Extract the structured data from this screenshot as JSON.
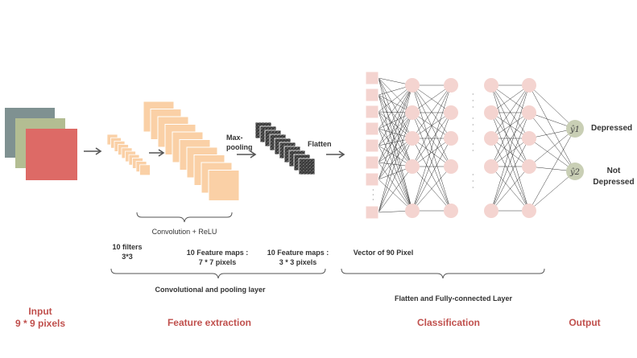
{
  "sections": {
    "input": [
      "Input",
      "9 * 9 pixels"
    ],
    "feature_extraction": "Feature extraction",
    "classification": "Classification",
    "output": "Output"
  },
  "labels": {
    "max_pooling": [
      "Max-",
      "pooling"
    ],
    "flatten": "Flatten",
    "convolution_relu": "Convolution + ReLU",
    "filters": [
      "10 filters",
      "3*3"
    ],
    "feature_maps_7": [
      "10 Feature maps :",
      "7 * 7 pixels"
    ],
    "feature_maps_3": [
      "10 Feature maps :",
      "3 * 3 pixels"
    ],
    "vector": "Vector of 90 Pixel",
    "conv_pool_layer": "Convolutional and pooling layer",
    "flatten_fc_layer": "Flatten and Fully-connected Layer"
  },
  "outputs": {
    "y1_symbol": "ŷ1",
    "y2_symbol": "ŷ2",
    "depressed": "Depressed",
    "not_depressed": [
      "Not",
      "Depressed"
    ]
  },
  "colors": {
    "input_channels": [
      "#7f9191",
      "#b3bd92",
      "#dd6a66"
    ],
    "feature_map": "#fad0a6",
    "pooled_map": "#444444",
    "neuron": "#f4d4d0",
    "output_neuron": "#c9cfb5",
    "section_title": "#c0504d"
  },
  "icons": [
    "arrow-right-icon",
    "brace-icon"
  ]
}
